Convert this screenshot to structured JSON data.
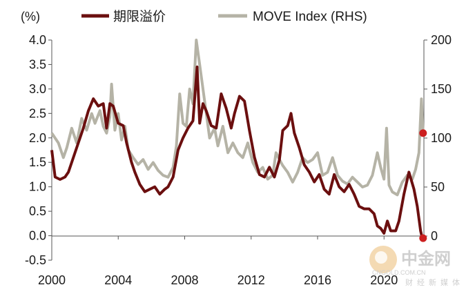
{
  "chart_data": {
    "type": "line",
    "title": "",
    "ylabel_left": "(%)",
    "xlim": [
      2000,
      2022.4
    ],
    "ylim_left": [
      -0.5,
      4.0
    ],
    "ylim_right": [
      0,
      200
    ],
    "x_ticks": [
      "2000",
      "2004",
      "2008",
      "2012",
      "2016",
      "2020"
    ],
    "y_left_ticks": [
      "4.0",
      "3.5",
      "3.0",
      "2.5",
      "2.0",
      "1.5",
      "1.0",
      "0.5",
      "0.0",
      "-0.5"
    ],
    "y_right_ticks": [
      "200",
      "150",
      "100",
      "50",
      "0"
    ],
    "grid": false,
    "legend_position": "top",
    "series": [
      {
        "name": "期限溢价",
        "axis": "left",
        "color": "#6b0f0f",
        "points": [
          [
            2000.0,
            1.75
          ],
          [
            2000.2,
            1.2
          ],
          [
            2000.5,
            1.15
          ],
          [
            2000.8,
            1.2
          ],
          [
            2001.0,
            1.3
          ],
          [
            2001.3,
            1.6
          ],
          [
            2001.6,
            1.9
          ],
          [
            2001.9,
            2.2
          ],
          [
            2002.2,
            2.55
          ],
          [
            2002.5,
            2.8
          ],
          [
            2002.8,
            2.65
          ],
          [
            2003.1,
            2.7
          ],
          [
            2003.3,
            2.2
          ],
          [
            2003.5,
            2.7
          ],
          [
            2003.7,
            2.65
          ],
          [
            2004.0,
            2.3
          ],
          [
            2004.3,
            2.25
          ],
          [
            2004.5,
            1.9
          ],
          [
            2004.8,
            1.5
          ],
          [
            2005.0,
            1.3
          ],
          [
            2005.3,
            1.05
          ],
          [
            2005.6,
            0.9
          ],
          [
            2005.9,
            0.95
          ],
          [
            2006.2,
            1.0
          ],
          [
            2006.5,
            0.85
          ],
          [
            2006.8,
            0.95
          ],
          [
            2007.0,
            1.0
          ],
          [
            2007.3,
            1.2
          ],
          [
            2007.6,
            1.75
          ],
          [
            2007.9,
            2.0
          ],
          [
            2008.2,
            2.2
          ],
          [
            2008.5,
            2.35
          ],
          [
            2008.75,
            3.45
          ],
          [
            2008.9,
            2.3
          ],
          [
            2009.1,
            2.7
          ],
          [
            2009.3,
            2.55
          ],
          [
            2009.6,
            2.25
          ],
          [
            2009.9,
            2.2
          ],
          [
            2010.2,
            2.9
          ],
          [
            2010.5,
            2.6
          ],
          [
            2010.8,
            2.2
          ],
          [
            2011.0,
            2.5
          ],
          [
            2011.3,
            2.85
          ],
          [
            2011.6,
            2.75
          ],
          [
            2011.9,
            2.15
          ],
          [
            2012.2,
            1.6
          ],
          [
            2012.5,
            1.25
          ],
          [
            2012.8,
            1.2
          ],
          [
            2013.1,
            1.4
          ],
          [
            2013.4,
            1.2
          ],
          [
            2013.7,
            1.55
          ],
          [
            2013.9,
            2.15
          ],
          [
            2014.2,
            2.25
          ],
          [
            2014.4,
            2.5
          ],
          [
            2014.6,
            2.1
          ],
          [
            2014.9,
            1.8
          ],
          [
            2015.2,
            1.45
          ],
          [
            2015.5,
            1.3
          ],
          [
            2015.8,
            1.1
          ],
          [
            2016.1,
            1.25
          ],
          [
            2016.4,
            0.95
          ],
          [
            2016.7,
            0.85
          ],
          [
            2017.0,
            1.25
          ],
          [
            2017.3,
            1.0
          ],
          [
            2017.6,
            0.9
          ],
          [
            2017.9,
            1.05
          ],
          [
            2018.2,
            0.85
          ],
          [
            2018.5,
            0.6
          ],
          [
            2018.8,
            0.55
          ],
          [
            2019.1,
            0.55
          ],
          [
            2019.4,
            0.45
          ],
          [
            2019.6,
            0.2
          ],
          [
            2019.8,
            0.15
          ],
          [
            2020.0,
            0.05
          ],
          [
            2020.2,
            0.3
          ],
          [
            2020.4,
            0.1
          ],
          [
            2020.7,
            0.1
          ],
          [
            2020.9,
            0.3
          ],
          [
            2021.2,
            0.85
          ],
          [
            2021.5,
            1.3
          ],
          [
            2021.8,
            0.95
          ],
          [
            2022.0,
            0.6
          ],
          [
            2022.2,
            0.1
          ],
          [
            2022.3,
            -0.05
          ]
        ]
      },
      {
        "name": "MOVE Index (RHS)",
        "axis": "right",
        "color": "#b5b3a6",
        "points": [
          [
            2000.0,
            105
          ],
          [
            2000.4,
            95
          ],
          [
            2000.7,
            80
          ],
          [
            2000.9,
            90
          ],
          [
            2001.2,
            110
          ],
          [
            2001.5,
            95
          ],
          [
            2001.8,
            120
          ],
          [
            2002.1,
            108
          ],
          [
            2002.4,
            125
          ],
          [
            2002.6,
            115
          ],
          [
            2002.9,
            128
          ],
          [
            2003.1,
            112
          ],
          [
            2003.3,
            105
          ],
          [
            2003.5,
            122
          ],
          [
            2003.6,
            155
          ],
          [
            2003.8,
            108
          ],
          [
            2004.0,
            125
          ],
          [
            2004.2,
            98
          ],
          [
            2004.4,
            112
          ],
          [
            2004.6,
            88
          ],
          [
            2004.9,
            80
          ],
          [
            2005.2,
            73
          ],
          [
            2005.5,
            78
          ],
          [
            2005.8,
            68
          ],
          [
            2006.1,
            75
          ],
          [
            2006.4,
            67
          ],
          [
            2006.7,
            62
          ],
          [
            2007.0,
            60
          ],
          [
            2007.3,
            70
          ],
          [
            2007.5,
            92
          ],
          [
            2007.7,
            145
          ],
          [
            2007.9,
            115
          ],
          [
            2008.1,
            112
          ],
          [
            2008.3,
            150
          ],
          [
            2008.5,
            135
          ],
          [
            2008.7,
            200
          ],
          [
            2008.9,
            175
          ],
          [
            2009.1,
            150
          ],
          [
            2009.3,
            125
          ],
          [
            2009.5,
            100
          ],
          [
            2009.8,
            110
          ],
          [
            2010.0,
            92
          ],
          [
            2010.3,
            112
          ],
          [
            2010.6,
            85
          ],
          [
            2010.9,
            95
          ],
          [
            2011.2,
            85
          ],
          [
            2011.5,
            80
          ],
          [
            2011.8,
            95
          ],
          [
            2012.1,
            75
          ],
          [
            2012.4,
            65
          ],
          [
            2012.7,
            70
          ],
          [
            2013.0,
            58
          ],
          [
            2013.3,
            62
          ],
          [
            2013.5,
            85
          ],
          [
            2013.7,
            78
          ],
          [
            2013.9,
            72
          ],
          [
            2014.2,
            65
          ],
          [
            2014.5,
            55
          ],
          [
            2014.8,
            65
          ],
          [
            2015.1,
            80
          ],
          [
            2015.4,
            75
          ],
          [
            2015.7,
            78
          ],
          [
            2016.0,
            85
          ],
          [
            2016.3,
            62
          ],
          [
            2016.6,
            65
          ],
          [
            2016.9,
            80
          ],
          [
            2017.2,
            62
          ],
          [
            2017.5,
            56
          ],
          [
            2017.8,
            53
          ],
          [
            2018.1,
            60
          ],
          [
            2018.4,
            55
          ],
          [
            2018.7,
            50
          ],
          [
            2019.0,
            52
          ],
          [
            2019.3,
            62
          ],
          [
            2019.6,
            85
          ],
          [
            2019.8,
            70
          ],
          [
            2020.0,
            58
          ],
          [
            2020.15,
            110
          ],
          [
            2020.3,
            52
          ],
          [
            2020.5,
            45
          ],
          [
            2020.8,
            42
          ],
          [
            2021.1,
            55
          ],
          [
            2021.4,
            62
          ],
          [
            2021.7,
            58
          ],
          [
            2021.9,
            68
          ],
          [
            2022.1,
            85
          ],
          [
            2022.25,
            140
          ],
          [
            2022.35,
            105
          ]
        ]
      }
    ],
    "markers": [
      {
        "series": "MOVE Index (RHS)",
        "x": 2022.35,
        "value": 105
      },
      {
        "series": "期限溢价",
        "x": 2022.35,
        "value": -0.05
      }
    ],
    "marker_color": "#cc1f1f"
  },
  "watermark": {
    "brand_cn": "中金网",
    "domain": "CNGOLD.COM.CN",
    "tagline": "财经新媒体"
  }
}
